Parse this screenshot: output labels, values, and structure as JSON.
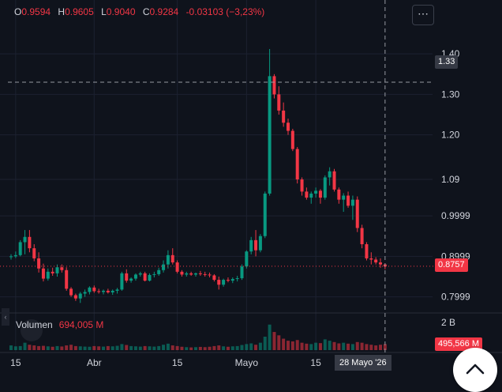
{
  "ohlc": {
    "o_label": "O",
    "o": "0.9594",
    "h_label": "H",
    "h": "0.9605",
    "l_label": "L",
    "l": "0.9040",
    "c_label": "C",
    "c": "0.9284",
    "change": "-0.03103 (−3,23%)"
  },
  "menu_icon": "ellipsis-icon",
  "volume": {
    "label": "Volumen",
    "value": "694,005 M",
    "axis_tag": "495,566 M",
    "axis_label": "2 B"
  },
  "price_axis": {
    "crosshair_label": "1.33",
    "last_label": "0.8757"
  },
  "crosshair_date": "28 Mayo '26",
  "colors": {
    "up": "#089981",
    "down": "#f23645",
    "background": "#0f131c",
    "grid": "#1c2130",
    "text": "#d1d4dc"
  },
  "chart_data": {
    "type": "candlestick",
    "y_ticks": [
      "1.40",
      "1.30",
      "1.20",
      "1.09",
      "0.9999",
      "0.8999",
      "0.7999"
    ],
    "y_tick_values": [
      1.4,
      1.3,
      1.2,
      1.09,
      0.9999,
      0.8999,
      0.7999
    ],
    "x_ticks": [
      "15",
      "Abr",
      "15",
      "Mayo",
      "15"
    ],
    "x_tick_index": [
      1,
      18,
      36,
      51,
      66
    ],
    "ylim": [
      0.768,
      1.455
    ],
    "crosshair_price": 1.33,
    "crosshair_index": 81,
    "last_price": 0.8757,
    "grid": true,
    "candles": [
      [
        0.898,
        0.905,
        0.892,
        0.9
      ],
      [
        0.9,
        0.912,
        0.896,
        0.903
      ],
      [
        0.903,
        0.94,
        0.9,
        0.935
      ],
      [
        0.935,
        0.965,
        0.905,
        0.948
      ],
      [
        0.948,
        0.965,
        0.91,
        0.92
      ],
      [
        0.92,
        0.93,
        0.888,
        0.895
      ],
      [
        0.895,
        0.91,
        0.86,
        0.87
      ],
      [
        0.87,
        0.882,
        0.838,
        0.845
      ],
      [
        0.845,
        0.87,
        0.84,
        0.862
      ],
      [
        0.862,
        0.872,
        0.852,
        0.858
      ],
      [
        0.858,
        0.88,
        0.85,
        0.873
      ],
      [
        0.873,
        0.88,
        0.86,
        0.866
      ],
      [
        0.866,
        0.873,
        0.815,
        0.82
      ],
      [
        0.82,
        0.824,
        0.8,
        0.804
      ],
      [
        0.804,
        0.808,
        0.79,
        0.796
      ],
      [
        0.796,
        0.812,
        0.785,
        0.808
      ],
      [
        0.808,
        0.818,
        0.8,
        0.812
      ],
      [
        0.812,
        0.826,
        0.806,
        0.823
      ],
      [
        0.823,
        0.828,
        0.81,
        0.814
      ],
      [
        0.814,
        0.82,
        0.808,
        0.812
      ],
      [
        0.812,
        0.818,
        0.806,
        0.815
      ],
      [
        0.815,
        0.82,
        0.808,
        0.811
      ],
      [
        0.811,
        0.818,
        0.805,
        0.815
      ],
      [
        0.815,
        0.822,
        0.808,
        0.818
      ],
      [
        0.818,
        0.862,
        0.815,
        0.858
      ],
      [
        0.858,
        0.868,
        0.835,
        0.84
      ],
      [
        0.84,
        0.848,
        0.835,
        0.845
      ],
      [
        0.845,
        0.858,
        0.84,
        0.855
      ],
      [
        0.855,
        0.862,
        0.85,
        0.858
      ],
      [
        0.858,
        0.862,
        0.838,
        0.84
      ],
      [
        0.84,
        0.858,
        0.838,
        0.854
      ],
      [
        0.854,
        0.862,
        0.848,
        0.856
      ],
      [
        0.856,
        0.872,
        0.852,
        0.866
      ],
      [
        0.866,
        0.89,
        0.86,
        0.88
      ],
      [
        0.88,
        0.915,
        0.87,
        0.903
      ],
      [
        0.903,
        0.92,
        0.88,
        0.885
      ],
      [
        0.885,
        0.89,
        0.858,
        0.862
      ],
      [
        0.862,
        0.866,
        0.85,
        0.855
      ],
      [
        0.855,
        0.862,
        0.85,
        0.858
      ],
      [
        0.858,
        0.862,
        0.852,
        0.855
      ],
      [
        0.855,
        0.86,
        0.85,
        0.858
      ],
      [
        0.858,
        0.864,
        0.852,
        0.856
      ],
      [
        0.856,
        0.862,
        0.85,
        0.855
      ],
      [
        0.855,
        0.86,
        0.848,
        0.853
      ],
      [
        0.853,
        0.856,
        0.838,
        0.842
      ],
      [
        0.842,
        0.85,
        0.818,
        0.83
      ],
      [
        0.83,
        0.845,
        0.825,
        0.842
      ],
      [
        0.842,
        0.848,
        0.836,
        0.84
      ],
      [
        0.84,
        0.848,
        0.834,
        0.844
      ],
      [
        0.844,
        0.852,
        0.838,
        0.846
      ],
      [
        0.846,
        0.88,
        0.842,
        0.875
      ],
      [
        0.875,
        0.915,
        0.87,
        0.912
      ],
      [
        0.912,
        0.948,
        0.905,
        0.94
      ],
      [
        0.94,
        0.965,
        0.9,
        0.915
      ],
      [
        0.915,
        0.955,
        0.91,
        0.95
      ],
      [
        0.95,
        1.06,
        0.945,
        1.055
      ],
      [
        1.055,
        1.412,
        1.05,
        1.345
      ],
      [
        1.345,
        1.35,
        1.29,
        1.3
      ],
      [
        1.3,
        1.32,
        1.25,
        1.26
      ],
      [
        1.26,
        1.28,
        1.22,
        1.23
      ],
      [
        1.23,
        1.24,
        1.2,
        1.21
      ],
      [
        1.21,
        1.215,
        1.16,
        1.165
      ],
      [
        1.165,
        1.17,
        1.08,
        1.09
      ],
      [
        1.09,
        1.095,
        1.05,
        1.06
      ],
      [
        1.06,
        1.07,
        1.04,
        1.045
      ],
      [
        1.045,
        1.06,
        1.03,
        1.055
      ],
      [
        1.055,
        1.07,
        1.045,
        1.062
      ],
      [
        1.062,
        1.066,
        1.03,
        1.045
      ],
      [
        1.045,
        1.1,
        1.04,
        1.095
      ],
      [
        1.095,
        1.12,
        1.075,
        1.11
      ],
      [
        1.11,
        1.116,
        1.06,
        1.065
      ],
      [
        1.065,
        1.07,
        1.03,
        1.04
      ],
      [
        1.04,
        1.056,
        1.01,
        1.05
      ],
      [
        1.05,
        1.06,
        1.02,
        1.025
      ],
      [
        1.025,
        1.05,
        0.99,
        1.04
      ],
      [
        1.04,
        1.048,
        0.96,
        0.97
      ],
      [
        0.97,
        0.978,
        0.92,
        0.93
      ],
      [
        0.93,
        0.935,
        0.89,
        0.895
      ],
      [
        0.895,
        0.91,
        0.88,
        0.892
      ],
      [
        0.892,
        0.898,
        0.88,
        0.885
      ],
      [
        0.885,
        0.895,
        0.872,
        0.88
      ],
      [
        0.88,
        0.882,
        0.868,
        0.875
      ]
    ],
    "volumes": [
      0.35,
      0.28,
      0.3,
      0.55,
      0.4,
      0.35,
      0.3,
      0.32,
      0.28,
      0.25,
      0.3,
      0.27,
      0.35,
      0.4,
      0.3,
      0.28,
      0.26,
      0.25,
      0.3,
      0.28,
      0.26,
      0.3,
      0.28,
      0.32,
      0.45,
      0.38,
      0.3,
      0.28,
      0.26,
      0.3,
      0.28,
      0.26,
      0.3,
      0.4,
      0.48,
      0.35,
      0.3,
      0.25,
      0.22,
      0.2,
      0.22,
      0.24,
      0.22,
      0.25,
      0.3,
      0.35,
      0.28,
      0.25,
      0.28,
      0.3,
      0.38,
      0.45,
      0.5,
      0.4,
      0.55,
      1.0,
      1.9,
      1.35,
      1.1,
      0.85,
      0.7,
      0.65,
      0.75,
      0.55,
      0.48,
      0.45,
      0.55,
      0.52,
      0.8,
      0.7,
      0.6,
      0.5,
      0.55,
      0.48,
      0.45,
      0.6,
      0.55,
      0.45,
      0.4,
      0.35,
      0.4,
      0.45
    ],
    "volume_tick": "2 B",
    "volume_max": 2.0
  }
}
